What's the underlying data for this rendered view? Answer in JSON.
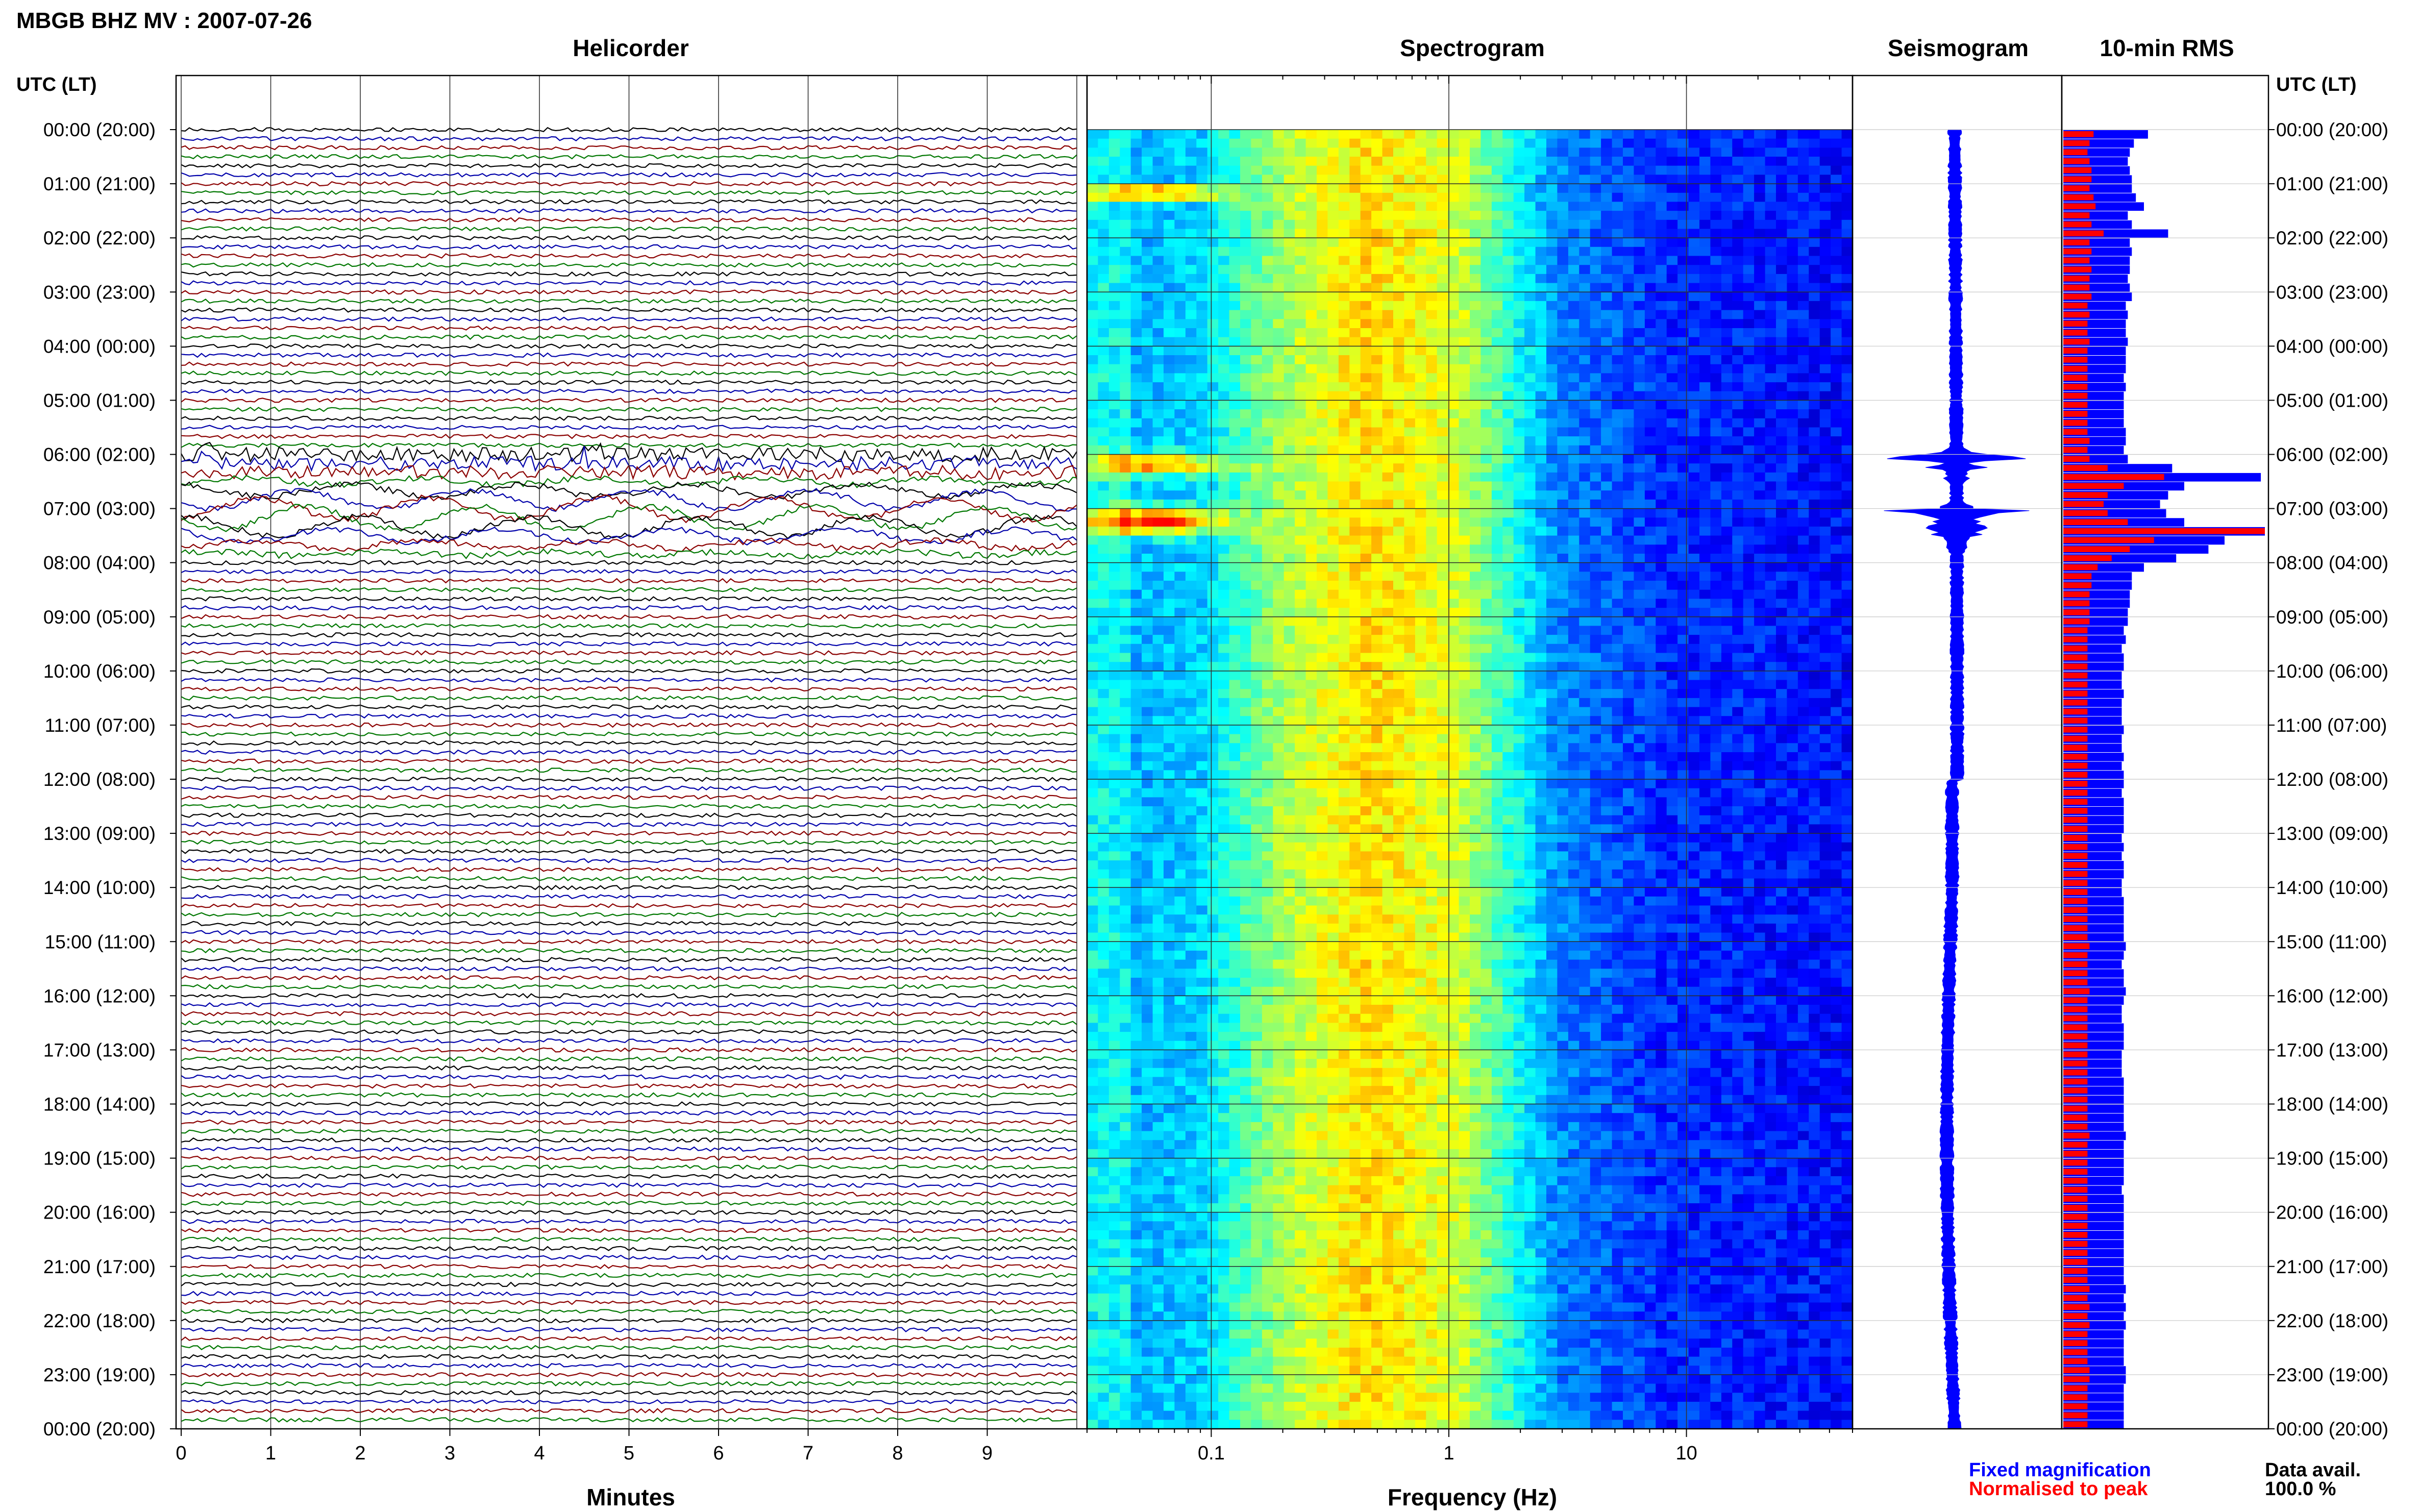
{
  "header": {
    "station_title": "MBGB BHZ MV : 2007-07-26"
  },
  "panels": {
    "helicorder": "Helicorder",
    "spectrogram": "Spectrogram",
    "seismogram": "Seismogram",
    "rms": "10-min RMS"
  },
  "axis": {
    "left_header": "UTC (LT)",
    "right_header": "UTC (LT)",
    "minutes_label": "Minutes",
    "frequency_label": "Frequency (Hz)",
    "minute_ticks": [
      "0",
      "1",
      "2",
      "3",
      "4",
      "5",
      "6",
      "7",
      "8",
      "9"
    ],
    "frequency_ticks": [
      "0.1",
      "1",
      "10"
    ]
  },
  "legend": {
    "fixed": "Fixed magnification",
    "normalised": "Normalised to peak",
    "fixed_color": "#0000ff",
    "normalised_color": "#ff0000"
  },
  "availability": {
    "label": "Data avail.",
    "value": "100.0 %"
  },
  "chart_data": {
    "type": "heatmap",
    "title": "MBGB BHZ MV : 2007-07-26",
    "time_labels": [
      "00:00 (20:00)",
      "01:00 (21:00)",
      "02:00 (22:00)",
      "03:00 (23:00)",
      "04:00 (00:00)",
      "05:00 (01:00)",
      "06:00 (02:00)",
      "07:00 (03:00)",
      "08:00 (04:00)",
      "09:00 (05:00)",
      "10:00 (06:00)",
      "11:00 (07:00)",
      "12:00 (08:00)",
      "13:00 (09:00)",
      "14:00 (10:00)",
      "15:00 (11:00)",
      "16:00 (12:00)",
      "17:00 (13:00)",
      "18:00 (14:00)",
      "19:00 (15:00)",
      "20:00 (16:00)",
      "21:00 (17:00)",
      "22:00 (18:00)",
      "23:00 (19:00)",
      "00:00 (20:00)"
    ],
    "helicorder": {
      "xlabel": "Minutes",
      "xlim": [
        0,
        10
      ],
      "trace_minutes": 10,
      "trace_colors": [
        "#000000",
        "#0000aa",
        "#8b0000",
        "#007700"
      ],
      "event_hours": [
        6.0,
        7.0
      ]
    },
    "spectrogram": {
      "xlabel": "Frequency (Hz)",
      "xscale": "log",
      "xlim": [
        0.03,
        50
      ]
    },
    "rms_10min": {
      "fixed_magnification": [
        0.42,
        0.35,
        0.33,
        0.32,
        0.33,
        0.34,
        0.34,
        0.36,
        0.4,
        0.32,
        0.34,
        0.52,
        0.33,
        0.34,
        0.33,
        0.33,
        0.32,
        0.33,
        0.34,
        0.31,
        0.32,
        0.31,
        0.31,
        0.32,
        0.31,
        0.31,
        0.31,
        0.3,
        0.31,
        0.3,
        0.3,
        0.3,
        0.3,
        0.31,
        0.31,
        0.3,
        0.32,
        0.54,
        0.98,
        0.6,
        0.52,
        0.48,
        0.51,
        0.6,
        1.0,
        0.8,
        0.72,
        0.56,
        0.4,
        0.34,
        0.34,
        0.33,
        0.33,
        0.32,
        0.32,
        0.3,
        0.31,
        0.29,
        0.3,
        0.3,
        0.29,
        0.29,
        0.3,
        0.29,
        0.29,
        0.29,
        0.3,
        0.29,
        0.29,
        0.3,
        0.29,
        0.3,
        0.3,
        0.29,
        0.3,
        0.3,
        0.3,
        0.3,
        0.29,
        0.3,
        0.29,
        0.3,
        0.3,
        0.29,
        0.29,
        0.3,
        0.3,
        0.3,
        0.3,
        0.3,
        0.31,
        0.3,
        0.29,
        0.3,
        0.3,
        0.31,
        0.3,
        0.29,
        0.29,
        0.3,
        0.3,
        0.3,
        0.29,
        0.29,
        0.29,
        0.3,
        0.3,
        0.3,
        0.3,
        0.3,
        0.3,
        0.31,
        0.3,
        0.3,
        0.3,
        0.3,
        0.3,
        0.29,
        0.3,
        0.3,
        0.3,
        0.3,
        0.3,
        0.3,
        0.3,
        0.3,
        0.3,
        0.3,
        0.31,
        0.3,
        0.31,
        0.3,
        0.31,
        0.3,
        0.3,
        0.3,
        0.3,
        0.31,
        0.31,
        0.3,
        0.3,
        0.3,
        0.3,
        0.3
      ],
      "normalised_to_peak": [
        0.15,
        0.13,
        0.12,
        0.13,
        0.14,
        0.14,
        0.13,
        0.15,
        0.16,
        0.13,
        0.14,
        0.2,
        0.13,
        0.14,
        0.13,
        0.14,
        0.13,
        0.13,
        0.14,
        0.12,
        0.13,
        0.12,
        0.12,
        0.13,
        0.12,
        0.12,
        0.12,
        0.12,
        0.12,
        0.12,
        0.12,
        0.12,
        0.12,
        0.12,
        0.13,
        0.12,
        0.13,
        0.22,
        0.5,
        0.3,
        0.22,
        0.2,
        0.22,
        0.32,
        1.0,
        0.45,
        0.33,
        0.24,
        0.17,
        0.14,
        0.14,
        0.13,
        0.13,
        0.13,
        0.13,
        0.12,
        0.12,
        0.12,
        0.12,
        0.12,
        0.12,
        0.12,
        0.12,
        0.12,
        0.12,
        0.12,
        0.12,
        0.12,
        0.12,
        0.12,
        0.12,
        0.12,
        0.12,
        0.12,
        0.12,
        0.12,
        0.12,
        0.12,
        0.12,
        0.12,
        0.12,
        0.12,
        0.12,
        0.12,
        0.12,
        0.12,
        0.12,
        0.12,
        0.12,
        0.12,
        0.13,
        0.12,
        0.12,
        0.12,
        0.12,
        0.13,
        0.12,
        0.12,
        0.12,
        0.12,
        0.12,
        0.12,
        0.12,
        0.12,
        0.12,
        0.12,
        0.12,
        0.12,
        0.12,
        0.12,
        0.12,
        0.13,
        0.12,
        0.12,
        0.12,
        0.12,
        0.12,
        0.12,
        0.12,
        0.12,
        0.12,
        0.12,
        0.12,
        0.12,
        0.12,
        0.12,
        0.12,
        0.12,
        0.13,
        0.12,
        0.13,
        0.12,
        0.13,
        0.12,
        0.12,
        0.12,
        0.12,
        0.13,
        0.13,
        0.12,
        0.12,
        0.12,
        0.12,
        0.12
      ]
    }
  }
}
